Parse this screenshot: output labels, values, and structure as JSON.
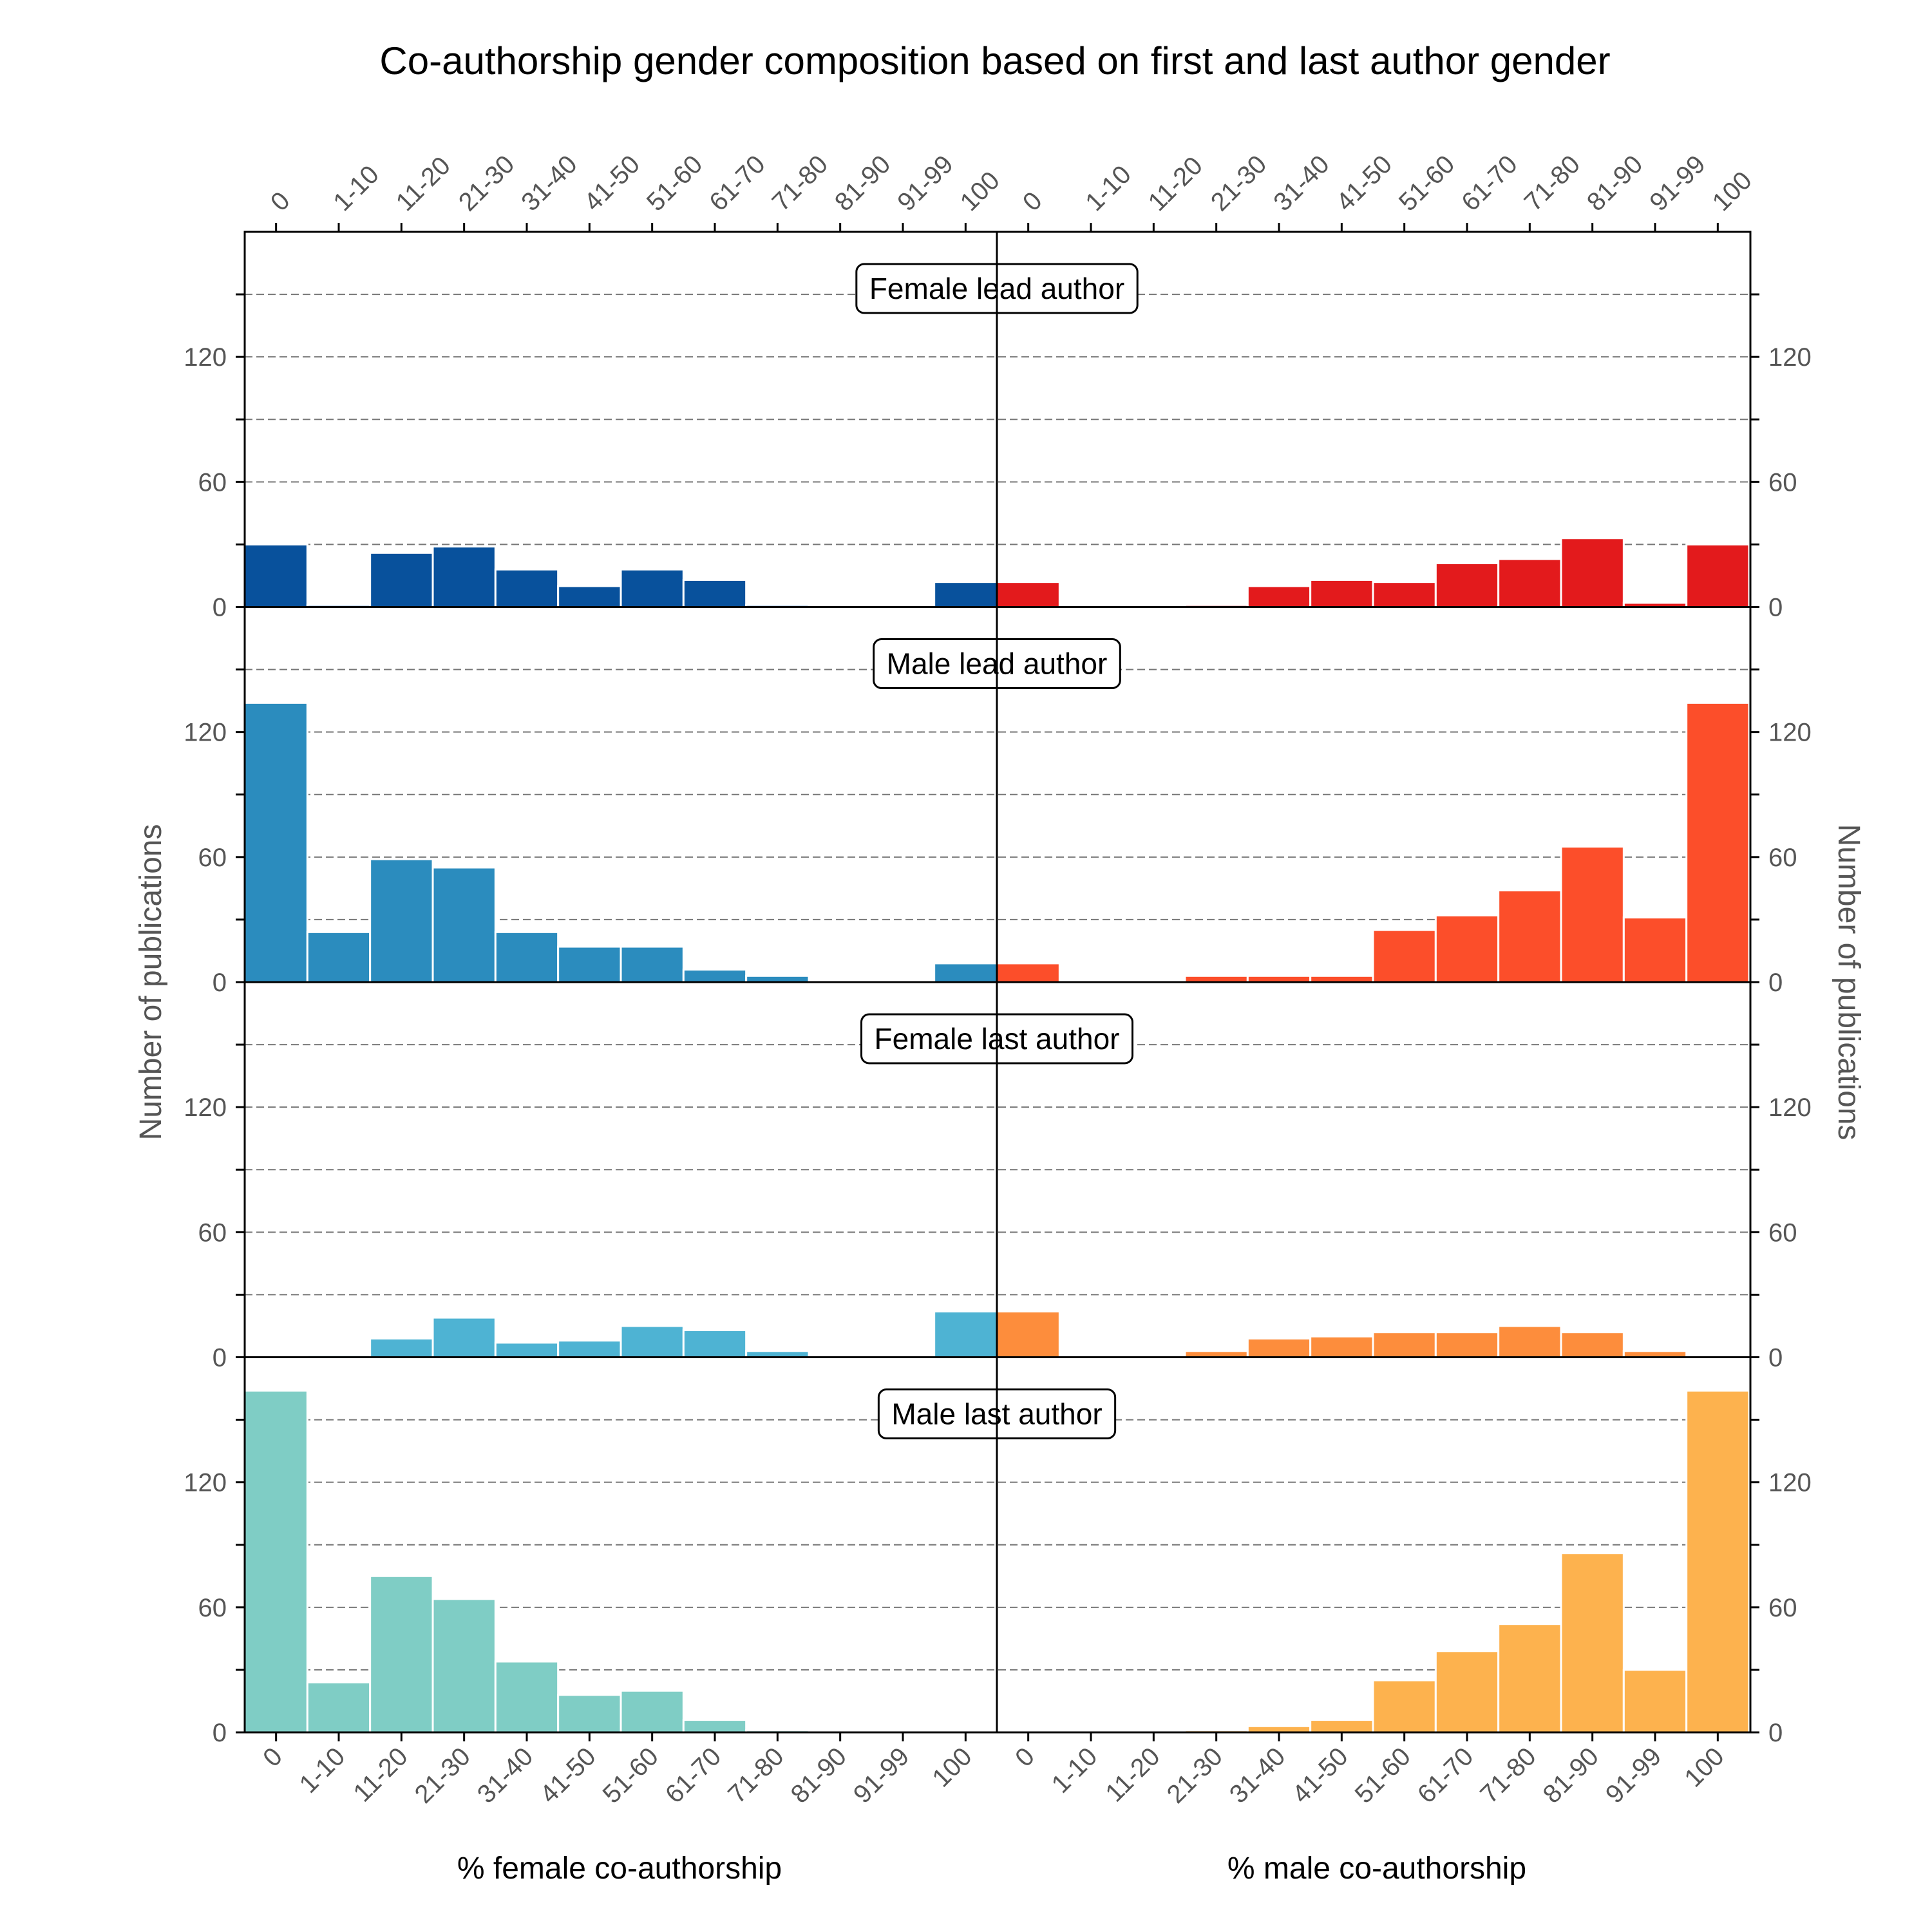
{
  "chart_data": {
    "type": "bar",
    "title": "Co-authorship gender composition based on first and last author gender",
    "categories": [
      "0",
      "1-10",
      "11-20",
      "21-30",
      "31-40",
      "41-50",
      "51-60",
      "61-70",
      "71-80",
      "81-90",
      "91-99",
      "100"
    ],
    "ylabel": "Number of publications",
    "xlabel_left": "% female co-authorship",
    "xlabel_right": "% male co-authorship",
    "ylim": [
      0,
      180
    ],
    "yticks": [
      0,
      60,
      120
    ],
    "grid": true,
    "panels": [
      {
        "label": "Female lead author",
        "female": {
          "color": "#08519c",
          "values": [
            30,
            1,
            26,
            29,
            18,
            10,
            18,
            13,
            1,
            0,
            0,
            12
          ]
        },
        "male": {
          "color": "#e31a1c",
          "values": [
            12,
            0,
            0,
            1,
            10,
            13,
            12,
            21,
            23,
            33,
            2,
            30
          ]
        }
      },
      {
        "label": "Male lead author",
        "female": {
          "color": "#2b8cbe",
          "values": [
            134,
            24,
            59,
            55,
            24,
            17,
            17,
            6,
            3,
            0,
            0,
            9
          ]
        },
        "male": {
          "color": "#fc4e2a",
          "values": [
            9,
            0,
            0,
            3,
            3,
            3,
            25,
            32,
            44,
            65,
            31,
            134
          ]
        }
      },
      {
        "label": "Female last author",
        "female": {
          "color": "#4eb3d3",
          "values": [
            0,
            1,
            9,
            19,
            7,
            8,
            15,
            13,
            3,
            0,
            0,
            22
          ]
        },
        "male": {
          "color": "#fd8d3c",
          "values": [
            22,
            0,
            0,
            3,
            9,
            10,
            12,
            12,
            15,
            12,
            3,
            0
          ]
        }
      },
      {
        "label": "Male last author",
        "female": {
          "color": "#7fcdc5",
          "values": [
            164,
            24,
            75,
            64,
            34,
            18,
            20,
            6,
            1,
            0,
            0,
            0
          ]
        },
        "male": {
          "color": "#fdb24e",
          "values": [
            0,
            0,
            0,
            1,
            3,
            6,
            25,
            39,
            52,
            86,
            30,
            164
          ]
        }
      }
    ]
  }
}
